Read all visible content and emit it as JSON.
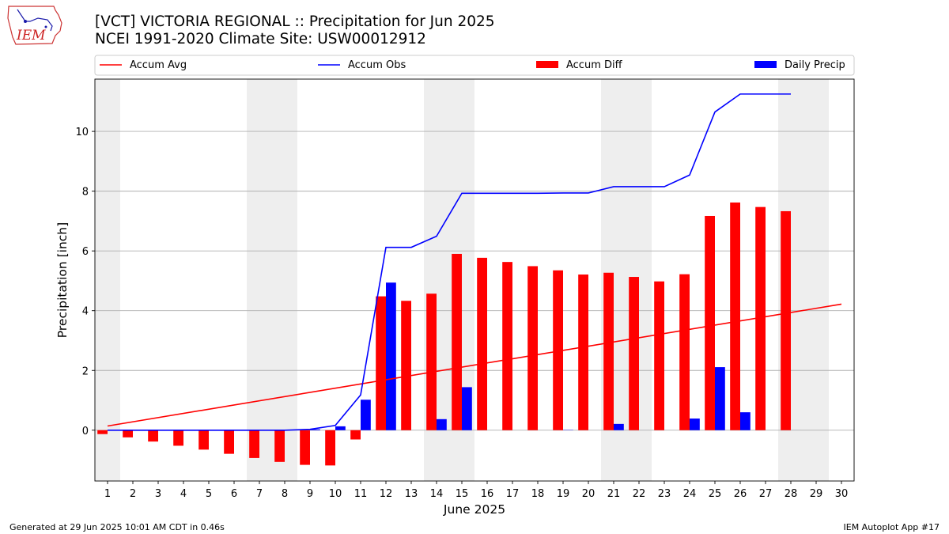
{
  "title": "[VCT] VICTORIA REGIONAL :: Precipitation for Jun 2025",
  "subtitle": "NCEI 1991-2020 Climate Site: USW00012912",
  "footer_left": "Generated at 29 Jun 2025 10:01 AM CDT in 0.46s",
  "footer_right": "IEM Autoplot App #17",
  "logo_text": "IEM",
  "chart_data": {
    "type": "bar",
    "xlabel": "June 2025",
    "ylabel": "Precipitation [inch]",
    "xlim": [
      0.5,
      30.5
    ],
    "ylim": [
      -1.7,
      11.75
    ],
    "x_ticks": [
      1,
      2,
      3,
      4,
      5,
      6,
      7,
      8,
      9,
      10,
      11,
      12,
      13,
      14,
      15,
      16,
      17,
      18,
      19,
      20,
      21,
      22,
      23,
      24,
      25,
      26,
      27,
      28,
      29,
      30
    ],
    "y_ticks": [
      0,
      2,
      4,
      6,
      8,
      10
    ],
    "grid": "y",
    "weekend_shading": [
      [
        0.5,
        1.5
      ],
      [
        6.5,
        8.5
      ],
      [
        13.5,
        15.5
      ],
      [
        20.5,
        22.5
      ],
      [
        27.5,
        29.5
      ]
    ],
    "shading_color": "#eeeeee",
    "legend": {
      "placement": "top",
      "entries": [
        {
          "label": "Accum Avg",
          "kind": "line",
          "color": "#ff0000"
        },
        {
          "label": "Accum Obs",
          "kind": "line",
          "color": "#0000ff"
        },
        {
          "label": "Accum Diff",
          "kind": "bar",
          "color": "#ff0000"
        },
        {
          "label": "Daily Precip",
          "kind": "bar",
          "color": "#0000ff"
        }
      ]
    },
    "series": [
      {
        "name": "Accum Avg",
        "type": "line",
        "color": "#ff0000",
        "x": [
          1,
          30
        ],
        "values": [
          0.14,
          4.22
        ]
      },
      {
        "name": "Accum Obs",
        "type": "line",
        "color": "#0000ff",
        "x": [
          1,
          2,
          3,
          4,
          5,
          6,
          7,
          8,
          9,
          10,
          11,
          12,
          13,
          14,
          15,
          16,
          17,
          18,
          19,
          20,
          21,
          22,
          23,
          24,
          25,
          26,
          27,
          28
        ],
        "values": [
          0,
          0,
          0,
          0,
          0,
          0,
          0,
          0,
          0.03,
          0.16,
          1.18,
          6.12,
          6.12,
          6.49,
          7.93,
          7.93,
          7.93,
          7.93,
          7.94,
          7.94,
          8.15,
          8.15,
          8.15,
          8.54,
          10.65,
          11.25,
          11.25,
          11.25
        ]
      },
      {
        "name": "Accum Diff",
        "type": "bar",
        "color": "#ff0000",
        "x": [
          1,
          2,
          3,
          4,
          5,
          6,
          7,
          8,
          9,
          10,
          11,
          12,
          13,
          14,
          15,
          16,
          17,
          18,
          19,
          20,
          21,
          22,
          23,
          24,
          25,
          26,
          27,
          28
        ],
        "values": [
          -0.13,
          -0.24,
          -0.38,
          -0.52,
          -0.65,
          -0.79,
          -0.93,
          -1.06,
          -1.16,
          -1.18,
          -0.31,
          4.48,
          4.33,
          4.57,
          5.9,
          5.77,
          5.63,
          5.49,
          5.35,
          5.21,
          5.27,
          5.13,
          4.98,
          5.22,
          7.17,
          7.62,
          7.47,
          7.33
        ]
      },
      {
        "name": "Daily Precip",
        "type": "bar",
        "color": "#0000ff",
        "x": [
          1,
          2,
          3,
          4,
          5,
          6,
          7,
          8,
          9,
          10,
          11,
          12,
          13,
          14,
          15,
          16,
          17,
          18,
          19,
          20,
          21,
          22,
          23,
          24,
          25,
          26,
          27,
          28
        ],
        "values": [
          0,
          0,
          0,
          0,
          0,
          0,
          0,
          0,
          0.03,
          0.13,
          1.02,
          4.94,
          0,
          0.37,
          1.44,
          0,
          0,
          0,
          0.01,
          0,
          0.21,
          0,
          0,
          0.39,
          2.11,
          0.6,
          0,
          0
        ]
      }
    ]
  }
}
